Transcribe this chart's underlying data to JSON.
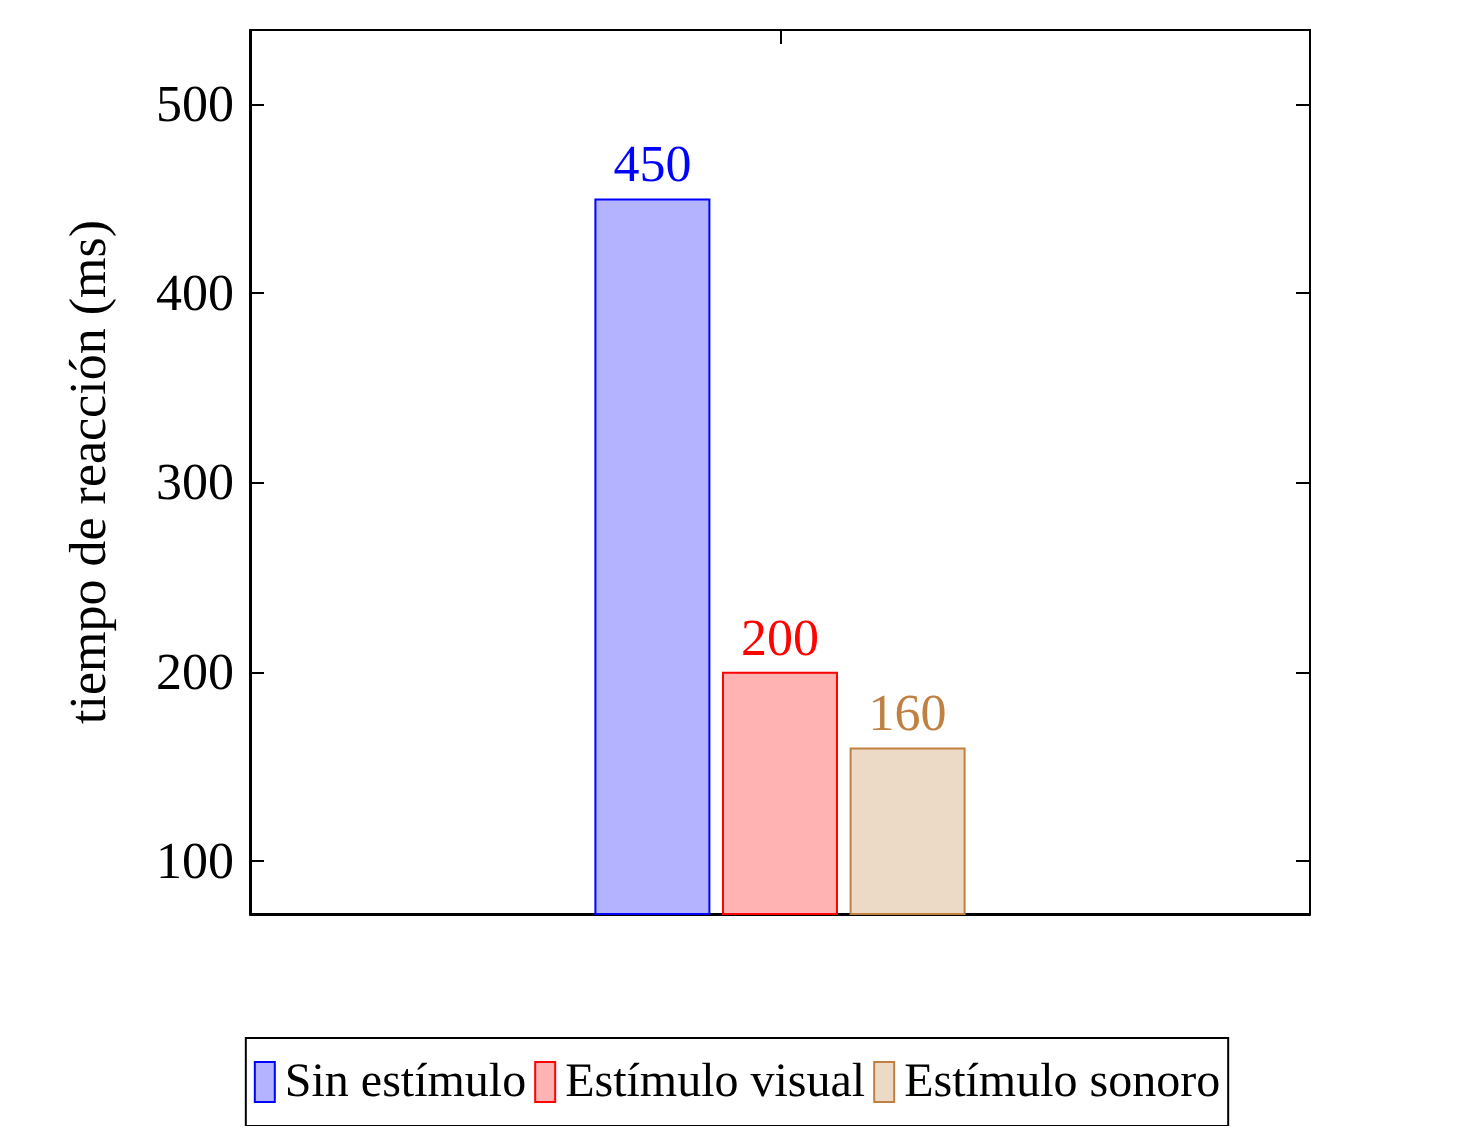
{
  "chart_data": {
    "type": "bar",
    "ylabel": "tiempo de reacción (ms)",
    "categories": [
      null
    ],
    "series": [
      {
        "name": "Sin estímulo",
        "color": "#b3b3ff",
        "values": [
          450
        ]
      },
      {
        "name": "Estímulo visual",
        "color": "#ffb3b3",
        "values": [
          200
        ]
      },
      {
        "name": "Estímulo sonoro",
        "color": "#ecd9c6",
        "values": [
          160
        ]
      }
    ],
    "ylim": [
      72,
      539
    ],
    "yticks": [
      100,
      200,
      300,
      400,
      500
    ],
    "grid": false,
    "legend": "bottom",
    "data_labels": true
  }
}
